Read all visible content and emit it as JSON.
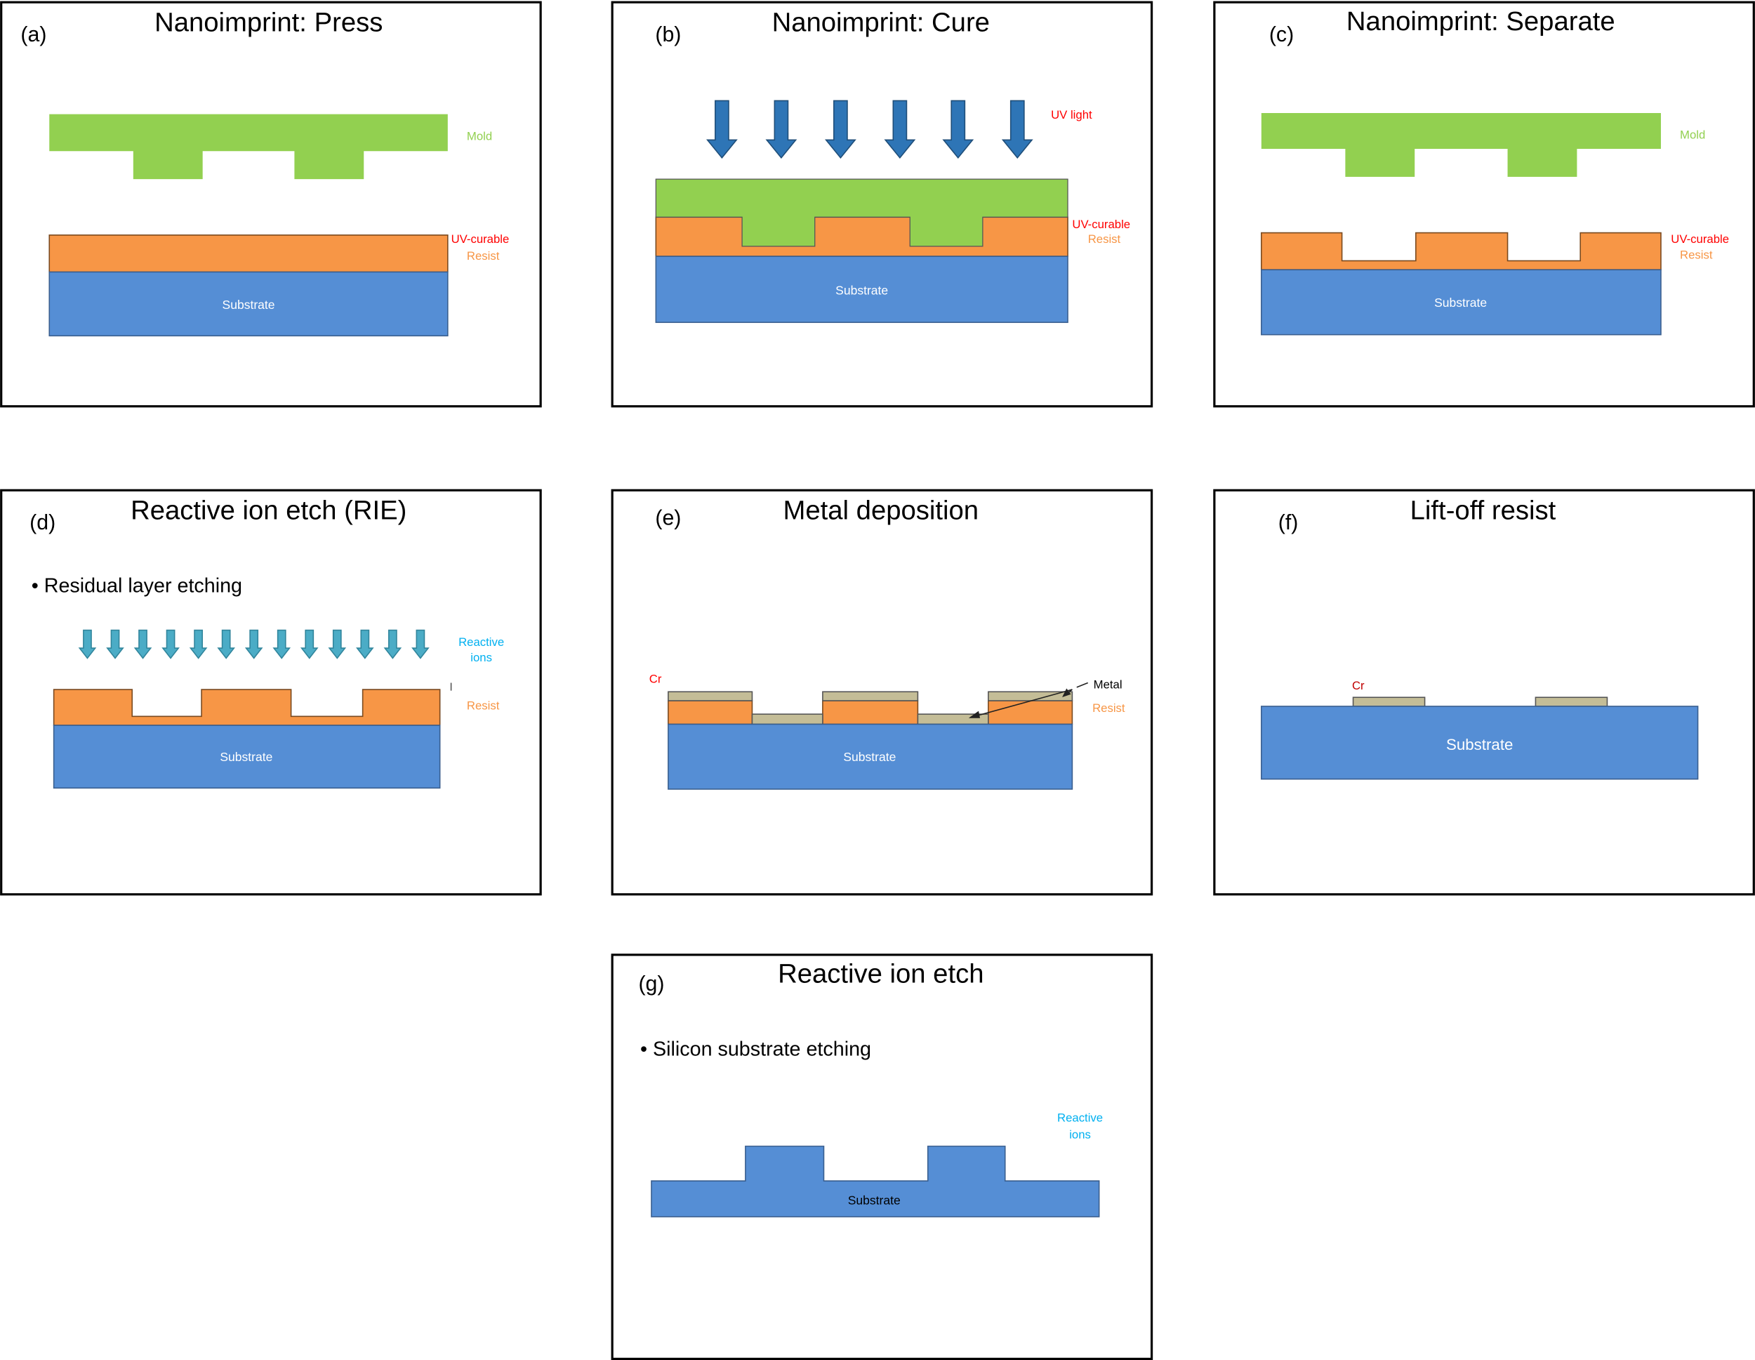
{
  "colors": {
    "substrate": "#558ed5",
    "resist": "#f79646",
    "mold": "#92d050",
    "metal": "#c4bd97",
    "uv_arrow": "#2e75b6",
    "ion_arrow": "#4bacc6",
    "label_red": "#ff0000",
    "label_orange": "#f79646",
    "label_green": "#92d050",
    "label_cyan": "#00b0f0"
  },
  "panels": {
    "a": {
      "tag": "(a)",
      "title": "Nanoimprint: Press",
      "mold": "Mold",
      "uv_curable": "UV-curable",
      "resist": "Resist",
      "substrate": "Substrate"
    },
    "b": {
      "tag": "(b)",
      "title": "Nanoimprint: Cure",
      "uv_light": "UV light",
      "uv_curable": "UV-curable",
      "resist": "Resist",
      "substrate": "Substrate"
    },
    "c": {
      "tag": "(c)",
      "title": "Nanoimprint: Separate",
      "mold": "Mold",
      "uv_curable": "UV-curable",
      "resist": "Resist",
      "substrate": "Substrate"
    },
    "d": {
      "tag": "(d)",
      "title": "Reactive ion etch (RIE)",
      "bullet": "•  Residual layer etching",
      "ions_1": "Reactive",
      "ions_2": "ions",
      "resist": "Resist",
      "substrate": "Substrate"
    },
    "e": {
      "tag": "(e)",
      "title": "Metal deposition",
      "cr": "Cr",
      "metal": "Metal",
      "resist": "Resist",
      "substrate": "Substrate"
    },
    "f": {
      "tag": "(f)",
      "title": "Lift-off resist",
      "cr": "Cr",
      "substrate": "Substrate"
    },
    "g": {
      "tag": "(g)",
      "title": "Reactive ion etch",
      "bullet": "•  Silicon substrate etching",
      "ions_1": "Reactive",
      "ions_2": "ions",
      "substrate": "Substrate"
    }
  }
}
